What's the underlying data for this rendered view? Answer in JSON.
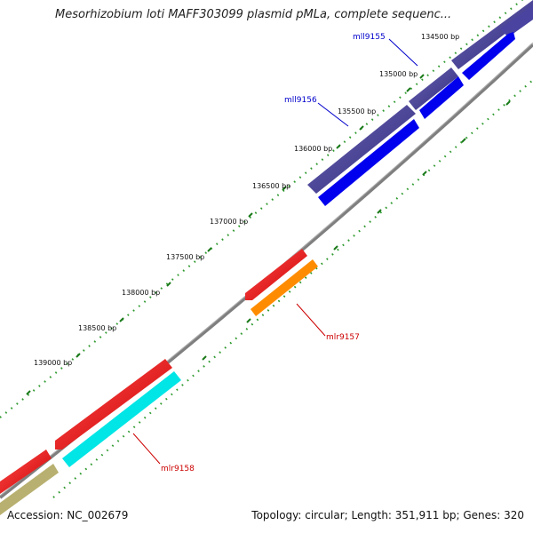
{
  "title": "Mesorhizobium loti MAFF303099 plasmid pMLa, complete sequenc...",
  "footer": {
    "accession": "Accession: NC_002679",
    "stats": "Topology: circular; Length: 351,911 bp; Genes: 320"
  },
  "colors": {
    "backbone": "#7f7f7f",
    "tick_major": "#1a7a1a",
    "tick_minor": "#2f9a2f",
    "forward_label": "#0000cc",
    "reverse_label": "#cc0000"
  },
  "ruler": [
    {
      "label": "134500 bp"
    },
    {
      "label": "135000 bp"
    },
    {
      "label": "135500 bp"
    },
    {
      "label": "136000 bp"
    },
    {
      "label": "136500 bp"
    },
    {
      "label": "137000 bp"
    },
    {
      "label": "137500 bp"
    },
    {
      "label": "138000 bp"
    },
    {
      "label": "138500 bp"
    },
    {
      "label": "139000 bp"
    }
  ],
  "genes": [
    {
      "label": "mll9155",
      "strand": "forward",
      "color": "#0000ee"
    },
    {
      "label": "mll9156",
      "strand": "forward",
      "color": "#0000ee"
    },
    {
      "label": "mlr9157",
      "strand": "reverse",
      "color": "#ff8c00"
    },
    {
      "label": "mlr9158",
      "strand": "reverse",
      "color": "#00e5e5"
    }
  ]
}
